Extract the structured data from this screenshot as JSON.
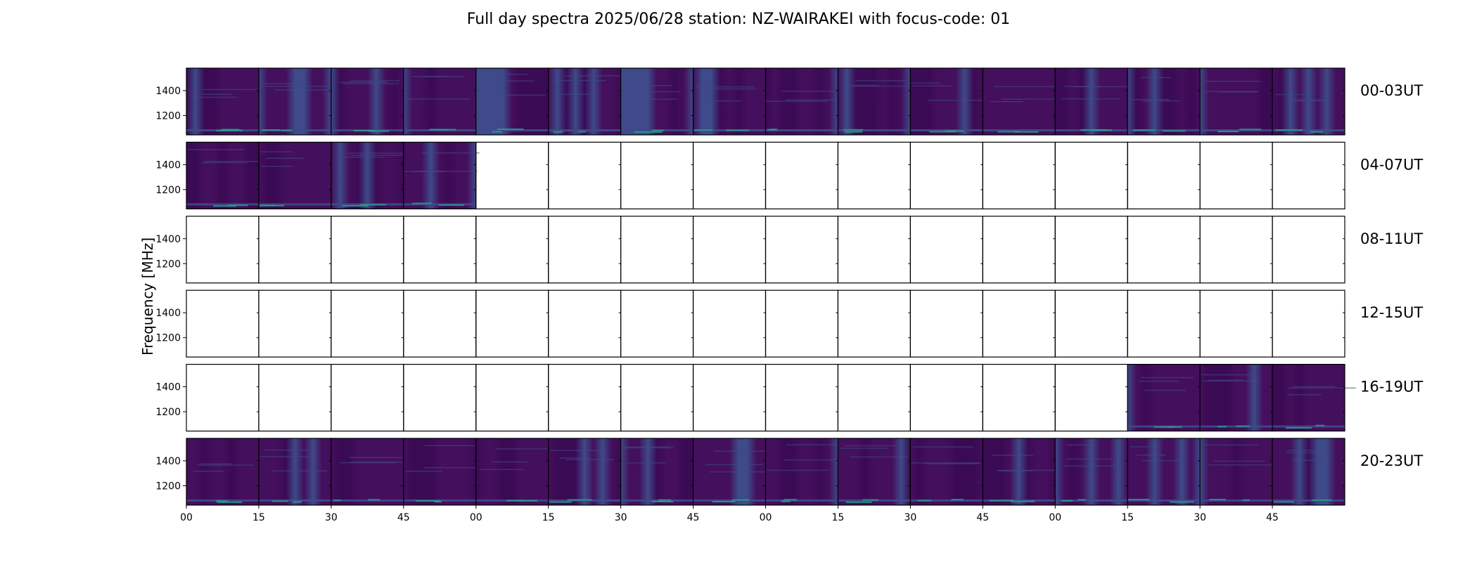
{
  "chart_data": {
    "type": "heatmap",
    "title": "Full day spectra 2025/06/28 station: NZ-WAIRAKEI with focus-code: 01",
    "ylabel": "Frequency [MHz]",
    "xlabel": "",
    "colormap": "viridis",
    "y_range_mhz": [
      1045,
      1580
    ],
    "yticks": [
      1200,
      1400
    ],
    "x_tick_labels": [
      "00",
      "15",
      "30",
      "45",
      "00",
      "15",
      "30",
      "45",
      "00",
      "15",
      "30",
      "45",
      "00",
      "15",
      "30",
      "45"
    ],
    "panels_per_row": 16,
    "panel_minutes": 15,
    "rows": [
      {
        "label": "00-03UT",
        "filled": [
          1,
          1,
          1,
          1,
          1,
          1,
          1,
          1,
          1,
          1,
          1,
          1,
          1,
          1,
          1,
          1
        ]
      },
      {
        "label": "04-07UT",
        "filled": [
          1,
          1,
          1,
          1,
          0,
          0,
          0,
          0,
          0,
          0,
          0,
          0,
          0,
          0,
          0,
          0
        ]
      },
      {
        "label": "08-11UT",
        "filled": [
          0,
          0,
          0,
          0,
          0,
          0,
          0,
          0,
          0,
          0,
          0,
          0,
          0,
          0,
          0,
          0
        ]
      },
      {
        "label": "12-15UT",
        "filled": [
          0,
          0,
          0,
          0,
          0,
          0,
          0,
          0,
          0,
          0,
          0,
          0,
          0,
          0,
          0,
          0
        ]
      },
      {
        "label": "16-19UT",
        "filled": [
          0,
          0,
          0,
          0,
          0,
          0,
          0,
          0,
          0,
          0,
          0,
          0,
          0,
          1,
          1,
          1
        ]
      },
      {
        "label": "20-23UT",
        "filled": [
          1,
          1,
          1,
          1,
          1,
          1,
          1,
          1,
          1,
          1,
          1,
          1,
          1,
          1,
          1,
          1
        ]
      }
    ],
    "colors": {
      "base": "#440f5c",
      "dark": "#3b0a55",
      "mid": "#3e4a89",
      "bright": "#26a98b",
      "frame": "#000000"
    }
  }
}
